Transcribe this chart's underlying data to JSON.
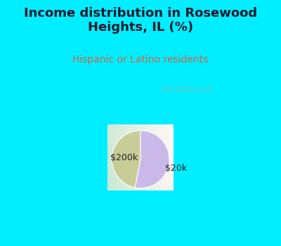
{
  "title": "Income distribution in Rosewood\nHeights, IL (%)",
  "subtitle": "Hispanic or Latino residents",
  "slices": [
    {
      "label": "$200k",
      "value": 47,
      "color": "#c8cc96"
    },
    {
      "label": "$20k",
      "value": 53,
      "color": "#c9b8e8"
    }
  ],
  "bg_color": "#00eeff",
  "title_color": "#1a1a2e",
  "subtitle_color": "#cc6644",
  "watermark": "City-Data.com",
  "startangle": 90,
  "title_fontsize": 13,
  "subtitle_fontsize": 10
}
